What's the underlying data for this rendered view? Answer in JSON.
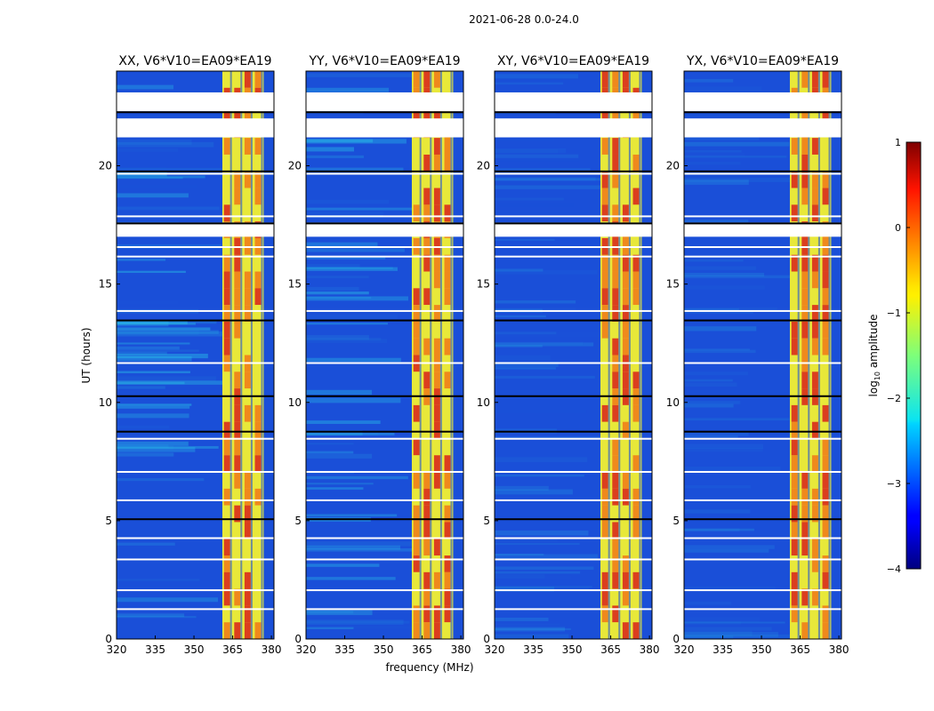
{
  "figure": {
    "suptitle": "2021-06-28 0.0-24.0"
  },
  "chart_data": {
    "type": "heatmap",
    "xlabel": "frequency (MHz)",
    "ylabel": "UT (hours)",
    "xlim": [
      320,
      381
    ],
    "ylim": [
      0,
      24
    ],
    "xticks": [
      320,
      335,
      350,
      365,
      380
    ],
    "yticks": [
      0,
      5,
      10,
      15,
      20
    ],
    "panels": [
      {
        "title": "XX, V6*V10=EA09*EA19",
        "pol": "XX"
      },
      {
        "title": "YY, V6*V10=EA09*EA19",
        "pol": "YY"
      },
      {
        "title": "XY, V6*V10=EA09*EA19",
        "pol": "XY"
      },
      {
        "title": "YX, V6*V10=EA09*EA19",
        "pol": "YX"
      }
    ],
    "bright_band_mhz": [
      361,
      377
    ],
    "band_start_mhz": {
      "XX": 361,
      "YY": 361,
      "XY": 361,
      "YX": 361
    },
    "flagged_gaps_hours": [
      [
        22.3,
        23.1
      ],
      [
        21.2,
        22.0
      ],
      [
        17.0,
        17.6
      ]
    ],
    "colorbar": {
      "label": "log10 amplitude",
      "vmin": -4,
      "vmax": 1,
      "ticks": [
        1,
        0,
        -1,
        -2,
        -3,
        -4
      ],
      "tick_labels": [
        "1",
        "0",
        "−1",
        "−2",
        "−3",
        "−4"
      ],
      "colormap": "jet"
    }
  },
  "colors": {
    "background_blue": "#1a4fd8",
    "cyan": "#2ac6e8",
    "yellow": "#e8e83a",
    "orange": "#f07818",
    "red": "#d8201a",
    "dark_red": "#7f0000",
    "dark_blue": "#00007f"
  }
}
